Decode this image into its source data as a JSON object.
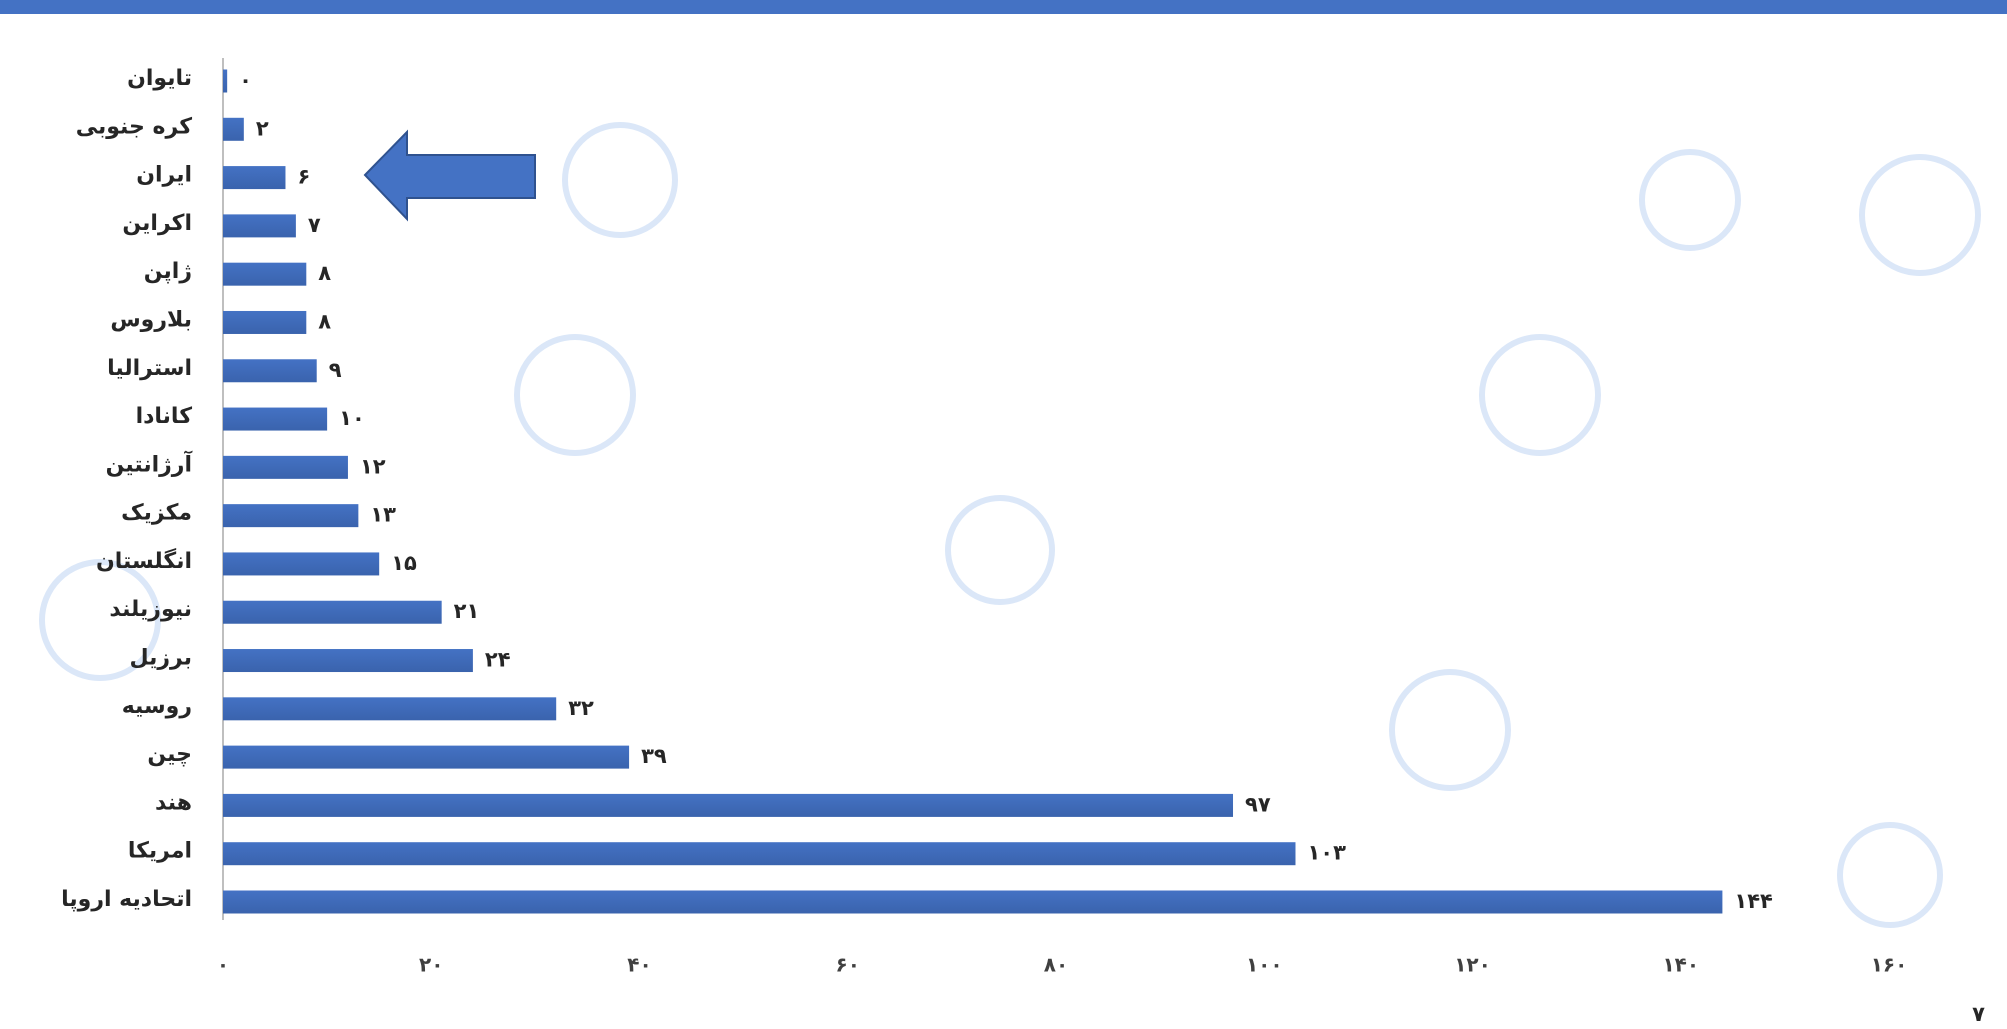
{
  "chart_data": {
    "type": "bar",
    "orientation": "horizontal",
    "categories": [
      "تایوان",
      "کره جنوبی",
      "ایران",
      "اکراین",
      "ژاپن",
      "بلاروس",
      "استرالیا",
      "کانادا",
      "آرژانتین",
      "مکزیک",
      "انگلستان",
      "نیوزیلند",
      "برزیل",
      "روسیه",
      "چین",
      "هند",
      "امریکا",
      "اتحادیه اروپا"
    ],
    "values": [
      0.4,
      2,
      6,
      7,
      8,
      8,
      9,
      10,
      12,
      13,
      15,
      21,
      24,
      32,
      39,
      97,
      103,
      144
    ],
    "value_labels": [
      "۰",
      "۲",
      "۶",
      "۷",
      "۸",
      "۸",
      "۹",
      "۱۰",
      "۱۲",
      "۱۳",
      "۱۵",
      "۲۱",
      "۲۴",
      "۳۲",
      "۳۹",
      "۹۷",
      "۱۰۳",
      "۱۴۴"
    ],
    "color": "#4472c4",
    "xlim": [
      0,
      160
    ],
    "xticks": [
      {
        "value": 0,
        "label": "۰"
      },
      {
        "value": 20,
        "label": "۲۰"
      },
      {
        "value": 40,
        "label": "۴۰"
      },
      {
        "value": 60,
        "label": "۶۰"
      },
      {
        "value": 80,
        "label": "۸۰"
      },
      {
        "value": 100,
        "label": "۱۰۰"
      },
      {
        "value": 120,
        "label": "۱۲۰"
      },
      {
        "value": 140,
        "label": "۱۴۰"
      },
      {
        "value": 160,
        "label": "۱۶۰"
      }
    ],
    "grid": false
  },
  "page_number": "۷"
}
